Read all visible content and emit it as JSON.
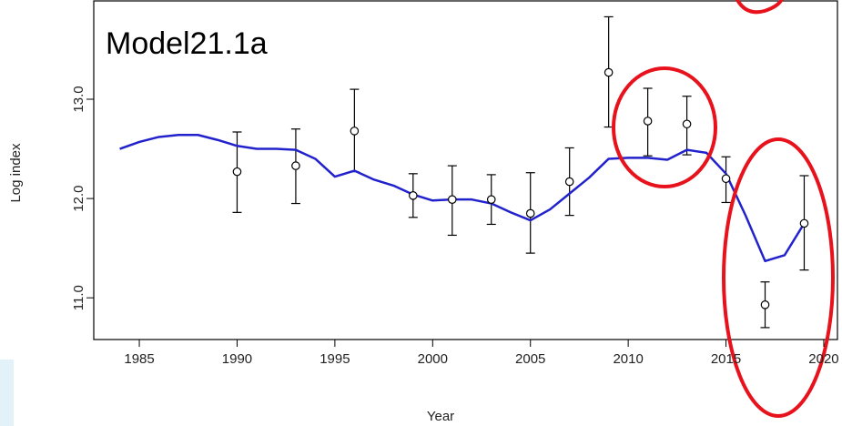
{
  "chart_data": {
    "type": "scatter",
    "title": "Model21.1a",
    "x_label": "Year",
    "y_label": "Log index",
    "x": [
      1990,
      1993,
      1996,
      1999,
      2001,
      2003,
      2005,
      2007,
      2009,
      2011,
      2013,
      2015,
      2017,
      2019
    ],
    "values": [
      12.27,
      12.33,
      12.68,
      12.03,
      11.99,
      11.99,
      11.85,
      12.17,
      13.27,
      12.78,
      12.75,
      12.2,
      10.93,
      11.75
    ],
    "lower": [
      11.86,
      11.95,
      12.27,
      11.81,
      11.63,
      11.74,
      11.45,
      11.83,
      12.72,
      12.43,
      12.44,
      11.96,
      10.7,
      11.28
    ],
    "upper": [
      12.67,
      12.7,
      13.1,
      12.25,
      12.33,
      12.24,
      12.26,
      12.51,
      13.83,
      13.11,
      13.03,
      12.42,
      11.16,
      12.23
    ],
    "line": {
      "type": "line",
      "color": "#2222cc",
      "x": [
        1984,
        1985,
        1986,
        1987,
        1988,
        1989,
        1990,
        1991,
        1992,
        1993,
        1994,
        1995,
        1996,
        1997,
        1998,
        1999,
        2000,
        2001,
        2002,
        2003,
        2004,
        2005,
        2006,
        2007,
        2008,
        2009,
        2010,
        2011,
        2012,
        2013,
        2014,
        2015,
        2016,
        2017,
        2018,
        2019
      ],
      "values": [
        12.5,
        12.57,
        12.62,
        12.64,
        12.64,
        12.59,
        12.53,
        12.5,
        12.5,
        12.49,
        12.4,
        12.22,
        12.28,
        12.19,
        12.13,
        12.04,
        11.98,
        11.99,
        11.99,
        11.95,
        11.86,
        11.78,
        11.89,
        12.05,
        12.21,
        12.4,
        12.41,
        12.41,
        12.39,
        12.49,
        12.46,
        12.25,
        11.83,
        11.37,
        11.43,
        11.75
      ]
    },
    "xlim": [
      1982.67,
      2020.7
    ],
    "ylim": [
      10.58,
      13.99
    ],
    "xticks": [
      1985,
      1990,
      1995,
      2000,
      2005,
      2010,
      2015,
      2020
    ],
    "yticks": [
      {
        "value": 11,
        "label": "11.0"
      },
      {
        "value": 12,
        "label": "12.0"
      },
      {
        "value": 13,
        "label": "13.0"
      }
    ]
  }
}
